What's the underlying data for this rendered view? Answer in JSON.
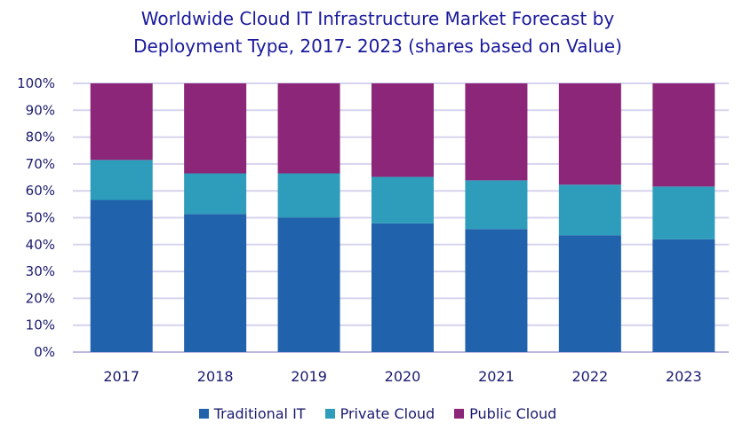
{
  "chart_data": {
    "type": "bar",
    "stacked": true,
    "title_lines": [
      "Worldwide Cloud IT Infrastructure Market Forecast by",
      "Deployment Type, 2017- 2023 (shares based on Value)"
    ],
    "categories": [
      "2017",
      "2018",
      "2019",
      "2020",
      "2021",
      "2022",
      "2023"
    ],
    "series": [
      {
        "name": "Traditional IT",
        "color": "#2062ab",
        "values": [
          56.6,
          51.4,
          50.1,
          47.9,
          45.8,
          43.5,
          42.0
        ]
      },
      {
        "name": "Private Cloud",
        "color": "#2e9dbb",
        "values": [
          14.9,
          15.1,
          16.4,
          17.3,
          18.1,
          18.8,
          19.6
        ]
      },
      {
        "name": "Public Cloud",
        "color": "#8b2678",
        "values": [
          28.5,
          33.5,
          33.5,
          34.8,
          36.1,
          37.7,
          38.4
        ]
      }
    ],
    "ylim": [
      0,
      100
    ],
    "yticks": [
      "0%",
      "10%",
      "20%",
      "30%",
      "40%",
      "50%",
      "60%",
      "70%",
      "80%",
      "90%",
      "100%"
    ],
    "grid": true,
    "legend_position": "bottom"
  }
}
